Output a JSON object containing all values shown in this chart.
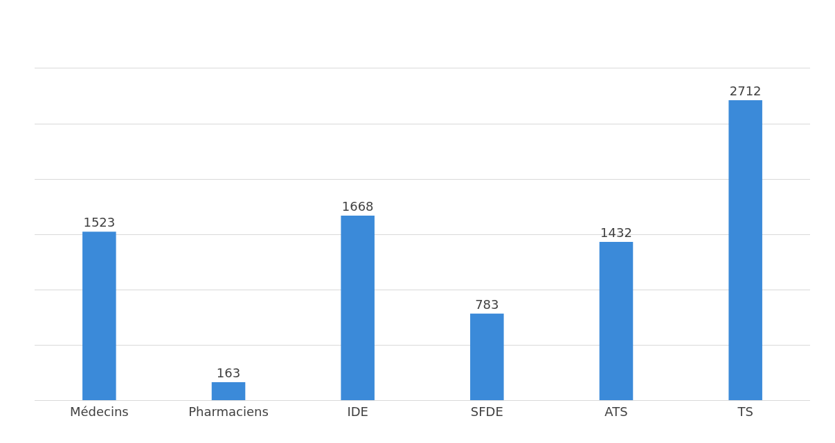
{
  "chart_data": {
    "type": "bar",
    "categories": [
      "Médecins",
      "Pharmaciens",
      "IDE",
      "SFDE",
      "ATS",
      "TS"
    ],
    "values": [
      1523,
      163,
      1668,
      783,
      1432,
      2712
    ],
    "color": "#3b8ad9",
    "data_labels": true,
    "grid": "y",
    "ylim": [
      0,
      3000
    ],
    "yticks": [
      {
        "value": 0,
        "label": null
      },
      {
        "value": 500,
        "label": null
      },
      {
        "value": 1000,
        "label": null
      },
      {
        "value": 1500,
        "label": null
      },
      {
        "value": 2000,
        "label": null
      },
      {
        "value": 2500,
        "label": null
      }
    ],
    "tick_labels": "x"
  }
}
